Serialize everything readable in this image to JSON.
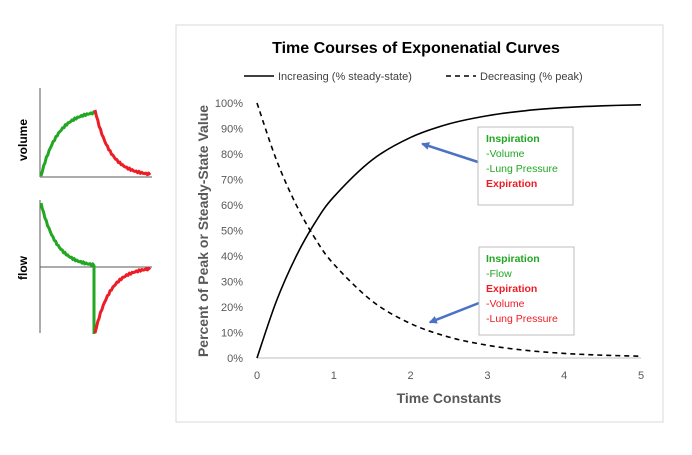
{
  "chart_data": {
    "type": "line",
    "title": "Time Courses of Exponenatial Curves",
    "xlabel": "Time Constants",
    "ylabel": "Percent of Peak or Steady-State Value",
    "xlim": [
      0,
      5
    ],
    "ylim": [
      0,
      100
    ],
    "xticks": [
      "0",
      "1",
      "2",
      "3",
      "4",
      "5"
    ],
    "yticks": [
      "0%",
      "10%",
      "20%",
      "30%",
      "40%",
      "50%",
      "60%",
      "70%",
      "80%",
      "90%",
      "100%"
    ],
    "grid": false,
    "legend_position": "top",
    "series": [
      {
        "name": "Increasing (% steady-state)",
        "style": "solid",
        "color": "#000000",
        "x": [
          0,
          0.25,
          0.5,
          0.75,
          1,
          1.5,
          2,
          2.5,
          3,
          3.5,
          4,
          4.5,
          5
        ],
        "y": [
          0,
          22.1,
          39.3,
          52.8,
          63.2,
          77.7,
          86.5,
          91.8,
          95.0,
          97.0,
          98.2,
          98.9,
          99.3
        ]
      },
      {
        "name": "Decreasing (% peak)",
        "style": "dashed",
        "color": "#000000",
        "x": [
          0,
          0.25,
          0.5,
          0.75,
          1,
          1.5,
          2,
          2.5,
          3,
          3.5,
          4,
          4.5,
          5
        ],
        "y": [
          100,
          77.9,
          60.7,
          47.2,
          36.8,
          22.3,
          13.5,
          8.2,
          5.0,
          3.0,
          1.8,
          1.1,
          0.7
        ]
      }
    ],
    "annotations": [
      {
        "lines": [
          {
            "text": "Inspiration",
            "color": "#22a722",
            "bold": true
          },
          {
            "text": "-Volume",
            "color": "#22a722",
            "bold": false
          },
          {
            "text": "-Lung Pressure",
            "color": "#22a722",
            "bold": false
          },
          {
            "text": "Expiration",
            "color": "#ee1c25",
            "bold": true
          }
        ],
        "points_to": {
          "x": 2.15,
          "y": 84
        }
      },
      {
        "lines": [
          {
            "text": "Inspiration",
            "color": "#22a722",
            "bold": true
          },
          {
            "text": "-Flow",
            "color": "#22a722",
            "bold": false
          },
          {
            "text": "Expiration",
            "color": "#ee1c25",
            "bold": true
          },
          {
            "text": "-Volume",
            "color": "#ee1c25",
            "bold": false
          },
          {
            "text": "-Lung Pressure",
            "color": "#ee1c25",
            "bold": false
          }
        ],
        "points_to": {
          "x": 2.25,
          "y": 14
        }
      }
    ]
  },
  "side_panels": {
    "volume_label": "volume",
    "flow_label": "flow"
  },
  "colors": {
    "inspiration": "#22a722",
    "expiration": "#ee1c25",
    "arrow": "#4a72c4",
    "frame": "#d9d9d9",
    "axis_text": "#595959"
  }
}
